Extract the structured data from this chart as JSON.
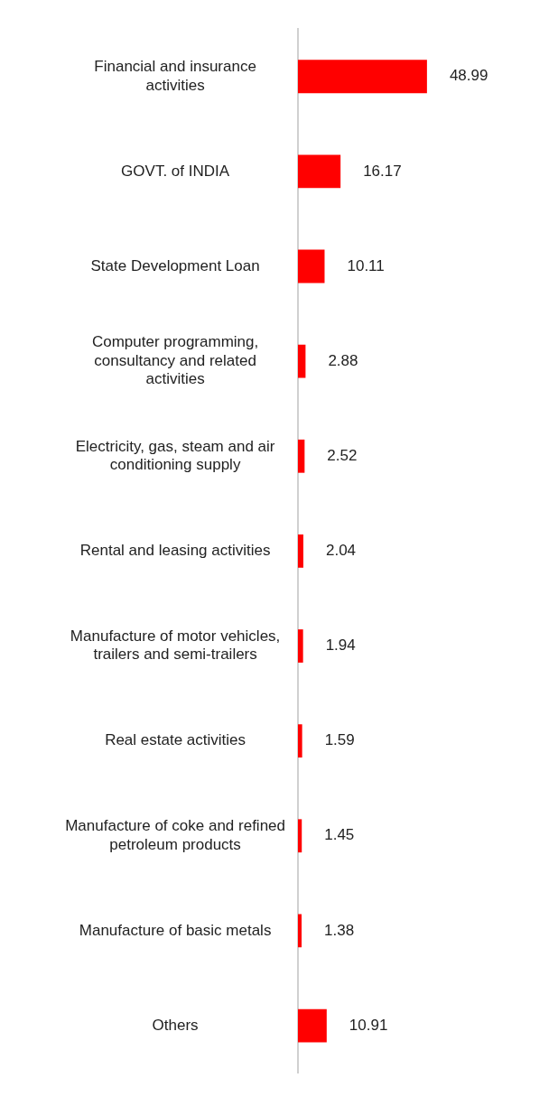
{
  "chart_data": {
    "type": "bar",
    "orientation": "horizontal",
    "data_labels": true,
    "legend": false,
    "categories": [
      "Financial and insurance activities",
      "GOVT. of INDIA",
      "State Development Loan",
      "Computer programming, consultancy and related activities",
      "Electricity, gas, steam and air conditioning supply",
      "Rental and leasing activities",
      "Manufacture of motor vehicles, trailers and semi-trailers",
      "Real estate activities",
      "Manufacture of coke and refined petroleum products",
      "Manufacture of basic metals",
      "Others"
    ],
    "series": [
      {
        "color": "#ff0000",
        "values": [
          48.99,
          16.17,
          10.11,
          2.88,
          2.52,
          2.04,
          1.94,
          1.59,
          1.45,
          1.38,
          10.91
        ]
      }
    ]
  }
}
